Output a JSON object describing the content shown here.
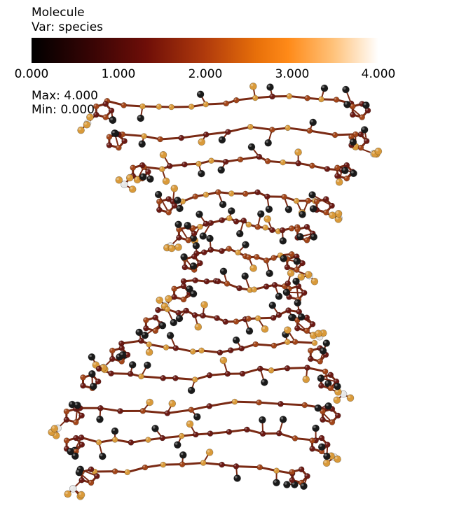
{
  "legend": {
    "title": "Molecule",
    "variable": "Var: species",
    "ticks": [
      "0.000",
      "1.000",
      "2.000",
      "3.000",
      "4.000"
    ],
    "max_label": "Max:",
    "max_value": "4.000",
    "min_label": "Min:",
    "min_value": "0.000",
    "colormap": [
      "#000000",
      "#3a0505",
      "#6e0e08",
      "#b03a0c",
      "#e8700a",
      "#ff8a18",
      "#ffc27a",
      "#ffffff"
    ]
  },
  "molecule": {
    "atom_colors": {
      "black": "#1a1a1a",
      "maroon": "#6b1a14",
      "rust": "#a24519",
      "orange": "#d99a3a",
      "white": "#e6e6e6"
    },
    "bond_color": "#7a2a14"
  }
}
